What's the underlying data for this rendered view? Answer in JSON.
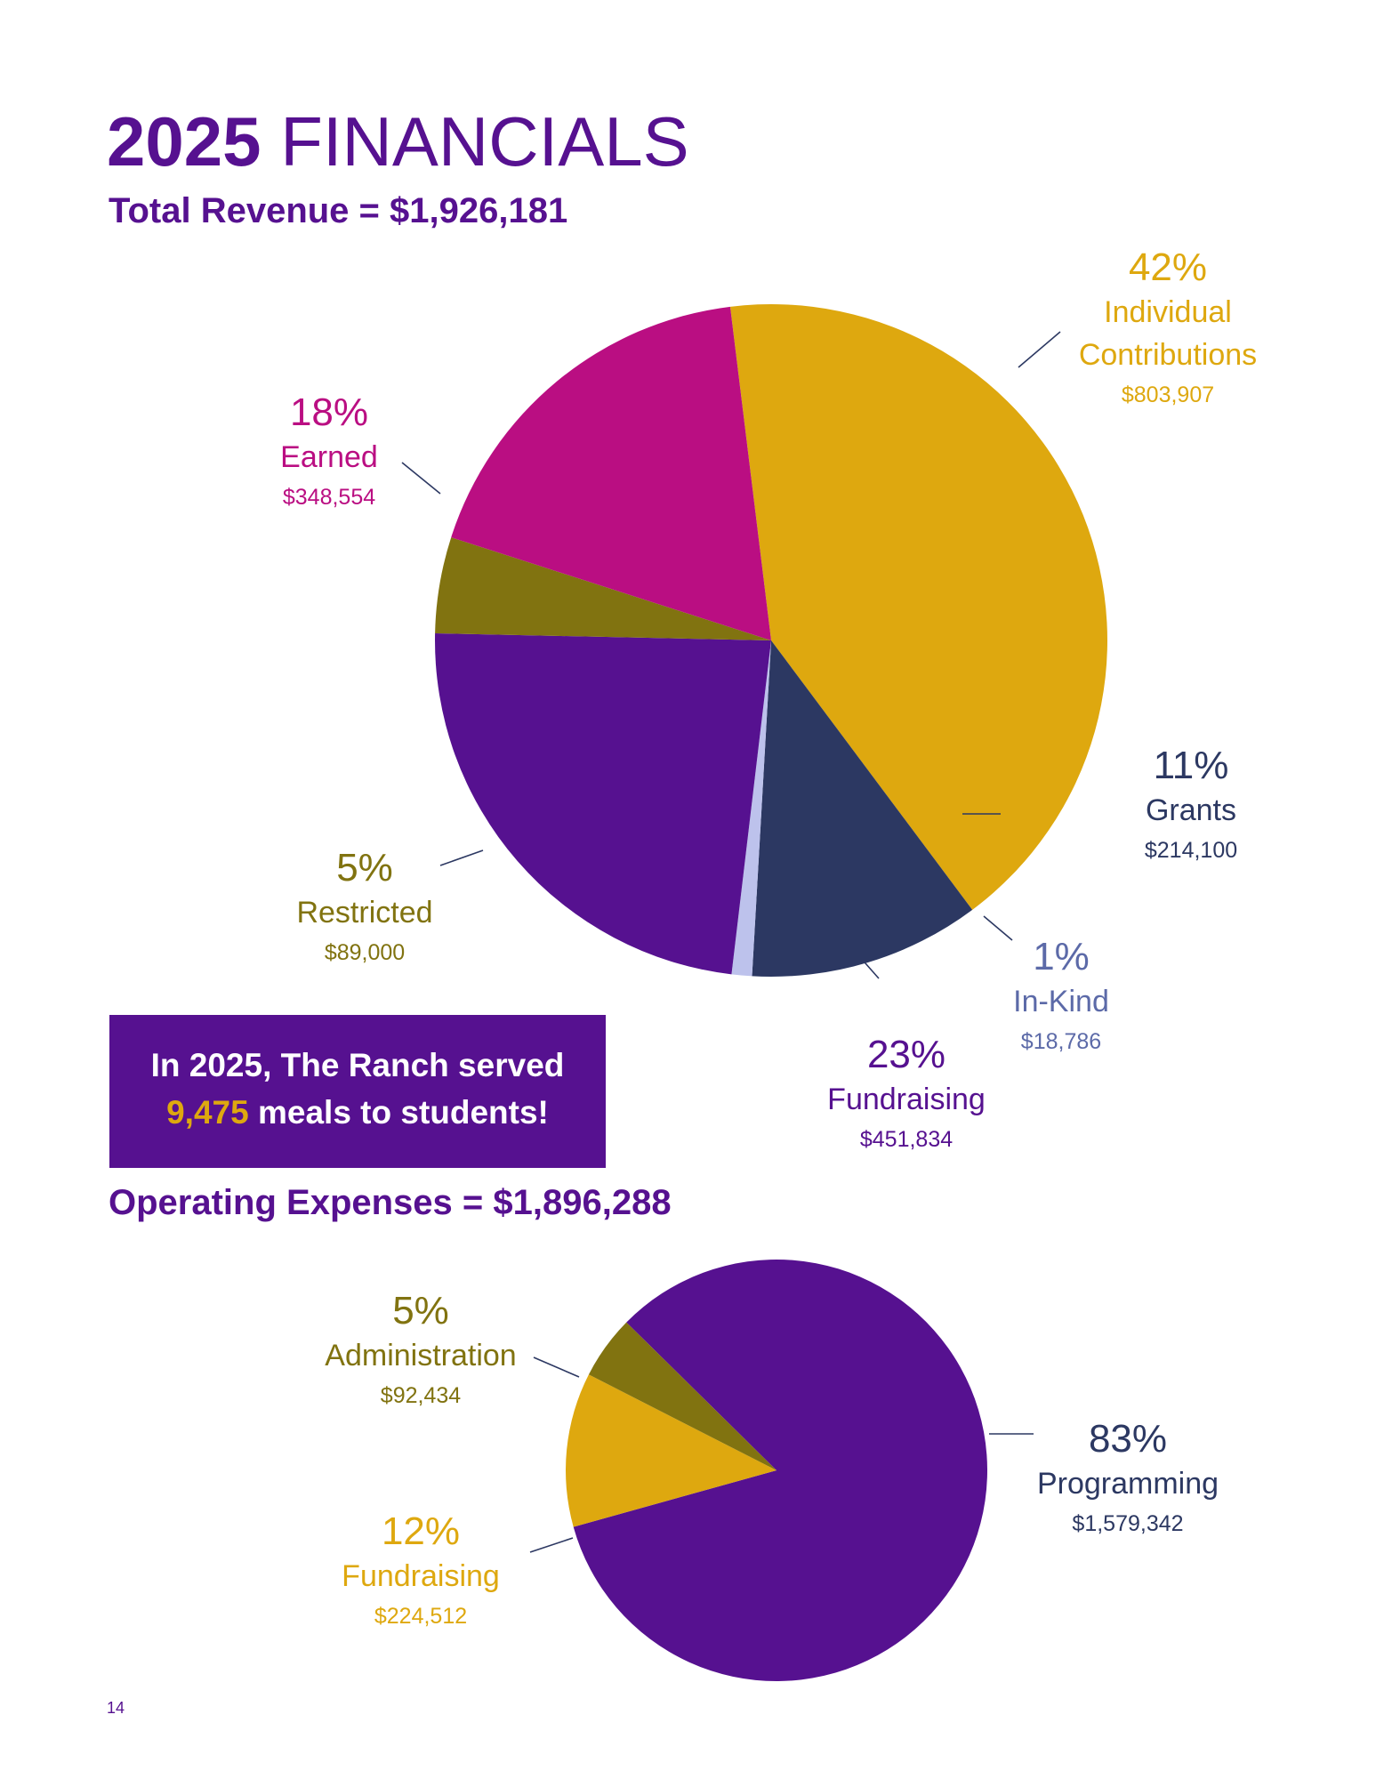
{
  "header": {
    "title_bold": "2025",
    "title_rest": "FINANCIALS"
  },
  "callout": {
    "line1": "In 2025, The Ranch served",
    "meals": "9,475",
    "line2_rest": "meals to students!"
  },
  "page_number": "14",
  "chart_data": [
    {
      "type": "pie",
      "title": "Total Revenue = $1,926,181",
      "slices": [
        {
          "label": "Individual Contributions",
          "name_line1": "Individual",
          "name_line2": "Contributions",
          "percent": "42%",
          "amount": "$803,907",
          "value": 803907,
          "color": "#DEA80F"
        },
        {
          "label": "Grants",
          "name_line1": "Grants",
          "percent": "11%",
          "amount": "$214,100",
          "value": 214100,
          "color": "#2C3862"
        },
        {
          "label": "In-Kind",
          "name_line1": "In-Kind",
          "percent": "1%",
          "amount": "$18,786",
          "value": 18786,
          "color": "#BDC2EC",
          "label_color": "#5C6AA8"
        },
        {
          "label": "Fundraising",
          "name_line1": "Fundraising",
          "percent": "23%",
          "amount": "$451,834",
          "value": 451834,
          "color": "#561190"
        },
        {
          "label": "Restricted",
          "name_line1": "Restricted",
          "percent": "5%",
          "amount": "$89,000",
          "value": 89000,
          "color": "#817310"
        },
        {
          "label": "Earned",
          "name_line1": "Earned",
          "percent": "18%",
          "amount": "$348,554",
          "value": 348554,
          "color": "#BA0E82"
        }
      ]
    },
    {
      "type": "pie",
      "title": "Operating Expenses = $1,896,288",
      "slices": [
        {
          "label": "Programming",
          "name_line1": "Programming",
          "percent": "83%",
          "amount": "$1,579,342",
          "value": 1579342,
          "color": "#561190",
          "label_color": "#2C3862"
        },
        {
          "label": "Fundraising",
          "name_line1": "Fundraising",
          "percent": "12%",
          "amount": "$224,512",
          "value": 224512,
          "color": "#DEA80F"
        },
        {
          "label": "Administration",
          "name_line1": "Administration",
          "percent": "5%",
          "amount": "$92,434",
          "value": 92434,
          "color": "#817310"
        }
      ]
    }
  ]
}
